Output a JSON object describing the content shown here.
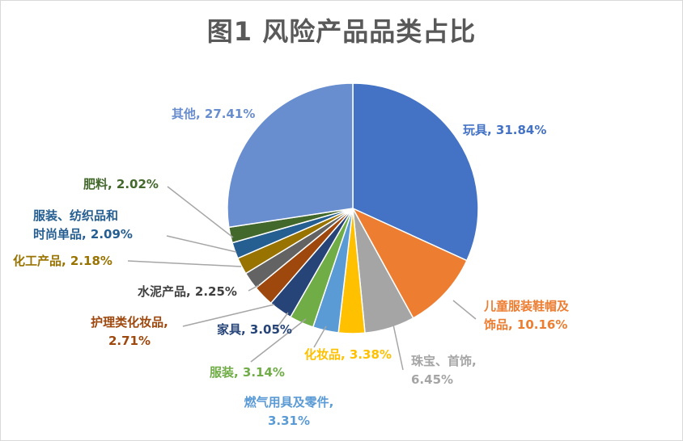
{
  "chart_data": {
    "type": "pie",
    "title": "图1 风险产品品类占比",
    "start_angle_deg": 0,
    "direction": "clockwise",
    "slices": [
      {
        "category": "玩具",
        "value": 31.84,
        "label_lines": [
          "玩具, 31.84%"
        ],
        "color": "#4472C4",
        "label_color": "#4472C4"
      },
      {
        "category": "儿童服装鞋帽及饰品",
        "value": 10.16,
        "label_lines": [
          "儿童服装鞋帽及",
          "饰品, 10.16%"
        ],
        "color": "#ED7D31",
        "label_color": "#ED7D31"
      },
      {
        "category": "珠宝、首饰",
        "value": 6.45,
        "label_lines": [
          "珠宝、首饰,",
          "6.45%"
        ],
        "color": "#A5A5A5",
        "label_color": "#A5A5A5"
      },
      {
        "category": "化妆品",
        "value": 3.38,
        "label_lines": [
          "化妆品, 3.38%"
        ],
        "color": "#FFC000",
        "label_color": "#FFC000"
      },
      {
        "category": "燃气用具及零件",
        "value": 3.31,
        "label_lines": [
          "燃气用具及零件,",
          "3.31%"
        ],
        "color": "#5B9BD5",
        "label_color": "#5B9BD5"
      },
      {
        "category": "服装",
        "value": 3.14,
        "label_lines": [
          "服装, 3.14%"
        ],
        "color": "#70AD47",
        "label_color": "#70AD47"
      },
      {
        "category": "家具",
        "value": 3.05,
        "label_lines": [
          "家具, 3.05%"
        ],
        "color": "#264478",
        "label_color": "#264478"
      },
      {
        "category": "护理类化妆品",
        "value": 2.71,
        "label_lines": [
          "护理类化妆品,",
          "2.71%"
        ],
        "color": "#9E480E",
        "label_color": "#9E480E"
      },
      {
        "category": "水泥产品",
        "value": 2.25,
        "label_lines": [
          "水泥产品, 2.25%"
        ],
        "color": "#636363",
        "label_color": "#404040"
      },
      {
        "category": "化工产品",
        "value": 2.18,
        "label_lines": [
          "化工产品, 2.18%"
        ],
        "color": "#997300",
        "label_color": "#997300"
      },
      {
        "category": "服装、纺织品和时尚单品",
        "value": 2.09,
        "label_lines": [
          "服装、纺织品和",
          "时尚单品, 2.09%"
        ],
        "color": "#255E91",
        "label_color": "#255E91"
      },
      {
        "category": "肥料",
        "value": 2.02,
        "label_lines": [
          "肥料, 2.02%"
        ],
        "color": "#43682B",
        "label_color": "#43682B"
      },
      {
        "category": "其他",
        "value": 27.41,
        "label_lines": [
          "其他, 27.41%"
        ],
        "color": "#698ED0",
        "label_color": "#698ED0"
      }
    ],
    "legend": "none",
    "label_style": "outside with leader lines"
  }
}
